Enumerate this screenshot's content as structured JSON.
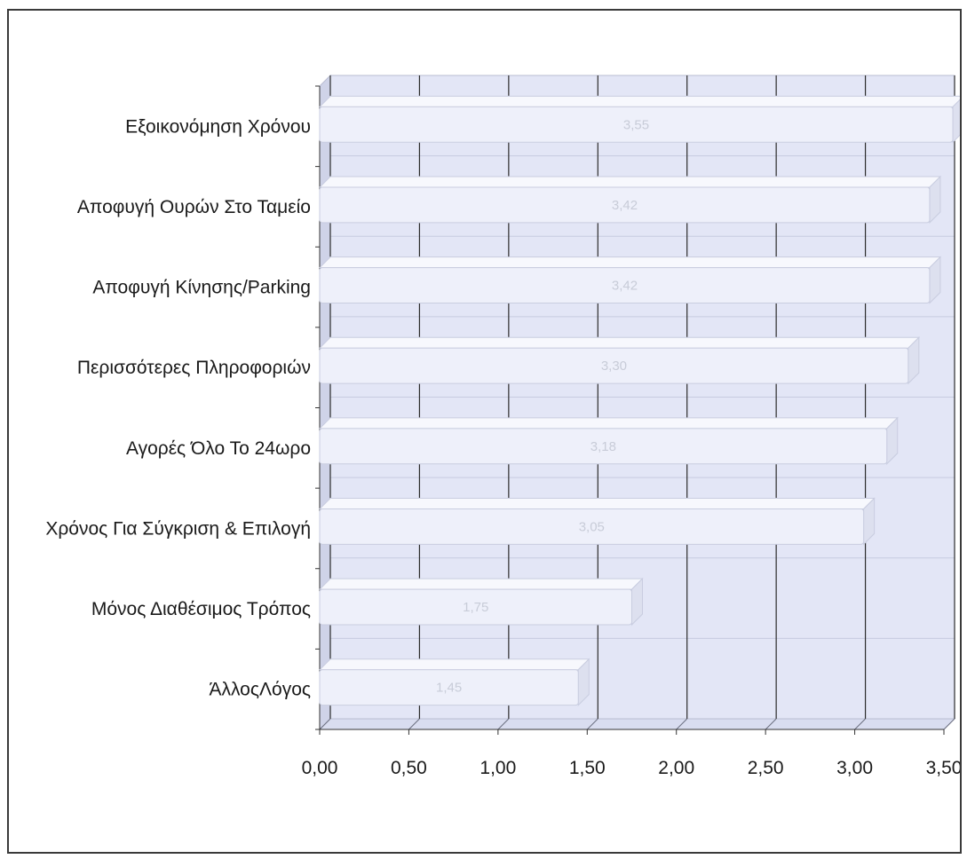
{
  "chart_data": {
    "type": "bar",
    "orientation": "horizontal",
    "categories": [
      "Εξοικονόμηση Χρόνου",
      "Αποφυγή Ουρών Στο Ταμείο",
      "Αποφυγή Κίνησης/Parking",
      "Περισσότερες Πληροφοριών",
      "Αγορές Όλο Το 24ωρο",
      "Χρόνος Για Σύγκριση & Επιλογή",
      "Μόνος Διαθέσιμος Τρόπος",
      "ΆλλοςΛόγος"
    ],
    "values": [
      3.55,
      3.42,
      3.42,
      3.3,
      3.18,
      3.05,
      1.75,
      1.45
    ],
    "data_labels": [
      "3,55",
      "3,42",
      "3,42",
      "3,30",
      "3,18",
      "3,05",
      "1,75",
      "1,45"
    ],
    "xlim": [
      0,
      3.5
    ],
    "xticks": [
      "0,00",
      "0,50",
      "1,00",
      "1,50",
      "2,00",
      "2,50",
      "3,00",
      "3,50"
    ],
    "grid": true,
    "colors": {
      "bar_fill": "#eef0fa",
      "bar_edge": "#c9cde0",
      "wall": "#e3e6f6",
      "floor": "#d9ddf0",
      "gridline": "#2b2b2b"
    }
  }
}
